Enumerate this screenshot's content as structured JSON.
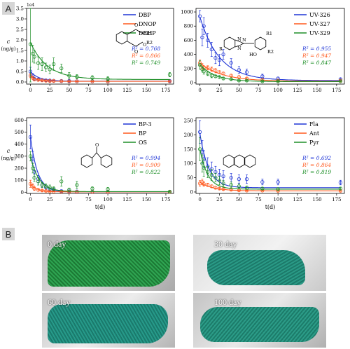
{
  "figure": {
    "panel_a": "A",
    "panel_b": "B",
    "y_label_line1": "c",
    "y_label_line2": "(ng/g)",
    "x_label": "t(d)",
    "sci_offset": "1e4"
  },
  "colors": {
    "blue": "#1f35d6",
    "orange": "#ff5a1f",
    "green": "#1e8f28",
    "photo_green": "#1f8e4f",
    "photo_teal": "#1d8a78"
  },
  "chart_data": [
    {
      "id": "tl",
      "type": "scatter",
      "title": "",
      "xlim": [
        -5,
        185
      ],
      "ylim": [
        -0.1,
        3.5
      ],
      "xticks": [
        0,
        25,
        50,
        75,
        100,
        125,
        150,
        175
      ],
      "yticks": [
        0.0,
        0.5,
        1.0,
        1.5,
        2.0,
        2.5,
        3.0,
        3.5
      ],
      "ytick_labels": [
        "0.0",
        "0.5",
        "1.0",
        "1.5",
        "2.0",
        "2.5",
        "3.0",
        "3.5"
      ],
      "legend_position": "top-right",
      "r2_labels": [
        "R² = 0.768",
        "R² = 0.866",
        "R² = 0.749"
      ],
      "structure": "phthalate",
      "structure_labels": [
        "O",
        "O",
        "R1",
        "R2",
        "O",
        "O"
      ],
      "series": [
        {
          "name": "DBP",
          "color": "blue",
          "x": [
            0,
            3,
            5,
            10,
            15,
            20,
            25,
            30,
            40,
            50,
            60,
            80,
            100,
            180
          ],
          "y": [
            0.5,
            0.3,
            0.15,
            0.12,
            0.1,
            0.08,
            0.07,
            0.06,
            0.05,
            0.05,
            0.04,
            0.04,
            0.03,
            0.05
          ],
          "err": [
            0.2,
            0.1,
            0.05,
            0.05,
            0.04,
            0.03,
            0.03,
            0.03,
            0.02,
            0.02,
            0.02,
            0.02,
            0.02,
            0.03
          ],
          "fit": {
            "a": 0.45,
            "k": 0.09,
            "c": 0.04
          }
        },
        {
          "name": "DNOP",
          "color": "orange",
          "x": [
            0,
            3,
            5,
            10,
            15,
            20,
            25,
            30,
            40,
            50,
            60,
            80,
            100,
            180
          ],
          "y": [
            0.3,
            0.2,
            0.12,
            0.1,
            0.08,
            0.06,
            0.05,
            0.05,
            0.04,
            0.03,
            0.03,
            0.03,
            0.02,
            0.03
          ],
          "err": [
            0.1,
            0.08,
            0.05,
            0.04,
            0.03,
            0.03,
            0.02,
            0.02,
            0.02,
            0.02,
            0.02,
            0.02,
            0.02,
            0.02
          ],
          "fit": {
            "a": 0.25,
            "k": 0.12,
            "c": 0.03
          }
        },
        {
          "name": "DEHP",
          "color": "green",
          "x": [
            0,
            3,
            5,
            10,
            15,
            20,
            25,
            30,
            40,
            50,
            60,
            80,
            100,
            180
          ],
          "y": [
            1.8,
            1.35,
            1.2,
            0.9,
            0.85,
            0.7,
            0.6,
            0.85,
            0.65,
            0.3,
            0.25,
            0.2,
            0.15,
            0.35
          ],
          "err": [
            1.8,
            0.4,
            0.3,
            0.3,
            0.3,
            0.2,
            0.2,
            0.3,
            0.2,
            0.15,
            0.1,
            0.1,
            0.1,
            0.1
          ],
          "fit": {
            "a": 1.75,
            "k": 0.045,
            "c": 0.12
          }
        }
      ]
    },
    {
      "id": "tr",
      "type": "scatter",
      "title": "",
      "xlim": [
        -5,
        185
      ],
      "ylim": [
        -20,
        1050
      ],
      "xticks": [
        0,
        25,
        50,
        75,
        100,
        125,
        150,
        175
      ],
      "yticks": [
        0,
        200,
        400,
        600,
        800,
        1000
      ],
      "ytick_labels": [
        "0",
        "200",
        "400",
        "600",
        "800",
        "1000"
      ],
      "legend_position": "top-right",
      "r2_labels": [
        "R² = 0.955",
        "R² = 0.947",
        "R² = 0.847"
      ],
      "structure": "benzotriazole",
      "structure_labels": [
        "N",
        "N",
        "N",
        "R",
        "R1",
        "R2",
        "HO"
      ],
      "series": [
        {
          "name": "UV-326",
          "color": "blue",
          "x": [
            0,
            3,
            5,
            10,
            15,
            20,
            25,
            30,
            40,
            50,
            60,
            80,
            100,
            180
          ],
          "y": [
            940,
            640,
            800,
            600,
            470,
            350,
            320,
            400,
            280,
            180,
            150,
            90,
            60,
            50
          ],
          "err": [
            80,
            120,
            120,
            100,
            100,
            80,
            80,
            70,
            60,
            50,
            40,
            30,
            20,
            15
          ],
          "fit": {
            "a": 900,
            "k": 0.04,
            "c": 30
          }
        },
        {
          "name": "UV-327",
          "color": "orange",
          "x": [
            0,
            3,
            5,
            10,
            15,
            20,
            25,
            30,
            40,
            50,
            60,
            80,
            100,
            180
          ],
          "y": [
            280,
            230,
            210,
            210,
            190,
            170,
            150,
            130,
            100,
            80,
            60,
            40,
            30,
            30
          ],
          "err": [
            40,
            40,
            30,
            30,
            30,
            30,
            20,
            20,
            20,
            20,
            15,
            10,
            10,
            10
          ],
          "fit": {
            "a": 260,
            "k": 0.035,
            "c": 20
          }
        },
        {
          "name": "UV-329",
          "color": "green",
          "x": [
            0,
            3,
            5,
            10,
            15,
            20,
            25,
            30,
            40,
            50,
            60,
            80,
            100,
            180
          ],
          "y": [
            250,
            190,
            160,
            130,
            100,
            90,
            80,
            60,
            50,
            30,
            30,
            20,
            20,
            20
          ],
          "err": [
            60,
            40,
            40,
            30,
            30,
            20,
            20,
            20,
            15,
            10,
            10,
            10,
            10,
            8
          ],
          "fit": {
            "a": 240,
            "k": 0.05,
            "c": 15
          }
        }
      ]
    },
    {
      "id": "bl",
      "type": "scatter",
      "title": "",
      "xlim": [
        -5,
        185
      ],
      "ylim": [
        -10,
        620
      ],
      "xticks": [
        0,
        25,
        50,
        75,
        100,
        125,
        150,
        175
      ],
      "yticks": [
        0,
        100,
        200,
        300,
        400,
        500,
        600
      ],
      "ytick_labels": [
        "0",
        "100",
        "200",
        "300",
        "400",
        "500",
        "600"
      ],
      "legend_position": "top-right",
      "r2_labels": [
        "R² = 0.994",
        "R² = 0.909",
        "R² = 0.822"
      ],
      "structure": "benzophenone",
      "structure_labels": [
        "O"
      ],
      "series": [
        {
          "name": "BP-3",
          "color": "blue",
          "x": [
            0,
            3,
            5,
            10,
            15,
            20,
            25,
            30,
            40,
            50,
            60,
            80,
            100,
            180
          ],
          "y": [
            460,
            280,
            170,
            110,
            60,
            40,
            25,
            20,
            10,
            8,
            6,
            5,
            4,
            3
          ],
          "err": [
            100,
            60,
            40,
            30,
            20,
            15,
            10,
            8,
            5,
            4,
            3,
            3,
            2,
            2
          ],
          "fit": {
            "a": 460,
            "k": 0.11,
            "c": 3
          }
        },
        {
          "name": "BP",
          "color": "orange",
          "x": [
            0,
            3,
            5,
            10,
            15,
            20,
            25,
            30,
            40,
            50,
            60,
            80,
            100,
            180
          ],
          "y": [
            70,
            50,
            30,
            20,
            15,
            10,
            8,
            6,
            5,
            4,
            3,
            3,
            2,
            2
          ],
          "err": [
            30,
            20,
            15,
            10,
            8,
            5,
            4,
            3,
            3,
            2,
            2,
            2,
            2,
            2
          ],
          "fit": {
            "a": 65,
            "k": 0.12,
            "c": 3
          }
        },
        {
          "name": "OS",
          "color": "green",
          "x": [
            0,
            3,
            5,
            10,
            15,
            20,
            25,
            30,
            40,
            50,
            60,
            80,
            100,
            180
          ],
          "y": [
            300,
            200,
            120,
            90,
            60,
            50,
            40,
            30,
            90,
            20,
            60,
            30,
            25,
            5
          ],
          "err": [
            40,
            40,
            30,
            30,
            20,
            20,
            20,
            15,
            40,
            15,
            30,
            15,
            15,
            5
          ],
          "fit": {
            "a": 290,
            "k": 0.09,
            "c": 5
          }
        }
      ]
    },
    {
      "id": "br",
      "type": "scatter",
      "title": "",
      "xlim": [
        -5,
        185
      ],
      "ylim": [
        -5,
        260
      ],
      "xticks": [
        0,
        25,
        50,
        75,
        100,
        125,
        150,
        175
      ],
      "yticks": [
        0,
        50,
        100,
        150,
        200,
        250
      ],
      "ytick_labels": [
        "0",
        "50",
        "100",
        "150",
        "200",
        "250"
      ],
      "legend_position": "top-right",
      "r2_labels": [
        "R² = 0.692",
        "R² = 0.864",
        "R² = 0.819"
      ],
      "structure": "anthracene",
      "structure_labels": [],
      "series": [
        {
          "name": "Fla",
          "color": "blue",
          "x": [
            0,
            3,
            5,
            10,
            15,
            20,
            25,
            30,
            40,
            50,
            60,
            80,
            100,
            180
          ],
          "y": [
            210,
            140,
            115,
            90,
            80,
            70,
            60,
            55,
            50,
            45,
            45,
            35,
            35,
            33
          ],
          "err": [
            40,
            40,
            30,
            30,
            25,
            20,
            20,
            20,
            15,
            15,
            15,
            10,
            10,
            8
          ],
          "fit": {
            "a": 190,
            "k": 0.09,
            "c": 15
          }
        },
        {
          "name": "Ant",
          "color": "orange",
          "x": [
            0,
            3,
            5,
            10,
            15,
            20,
            25,
            30,
            40,
            50,
            60,
            80,
            100,
            180
          ],
          "y": [
            30,
            35,
            28,
            25,
            20,
            15,
            12,
            10,
            8,
            6,
            5,
            5,
            4,
            4
          ],
          "err": [
            10,
            10,
            8,
            6,
            5,
            5,
            4,
            4,
            3,
            3,
            2,
            2,
            2,
            2
          ],
          "fit": {
            "a": 30,
            "k": 0.06,
            "c": 4
          }
        },
        {
          "name": "Pyr",
          "color": "green",
          "x": [
            0,
            3,
            5,
            10,
            15,
            20,
            25,
            30,
            40,
            50,
            60,
            80,
            100,
            180
          ],
          "y": [
            150,
            100,
            85,
            70,
            60,
            50,
            40,
            30,
            25,
            20,
            15,
            12,
            10,
            12
          ],
          "err": [
            40,
            30,
            30,
            20,
            20,
            15,
            15,
            10,
            10,
            8,
            6,
            5,
            5,
            5
          ],
          "fit": {
            "a": 140,
            "k": 0.1,
            "c": 10
          }
        }
      ]
    }
  ],
  "photos": [
    {
      "label": "0 day"
    },
    {
      "label": "30 day"
    },
    {
      "label": "60 day"
    },
    {
      "label": "100 day"
    }
  ]
}
